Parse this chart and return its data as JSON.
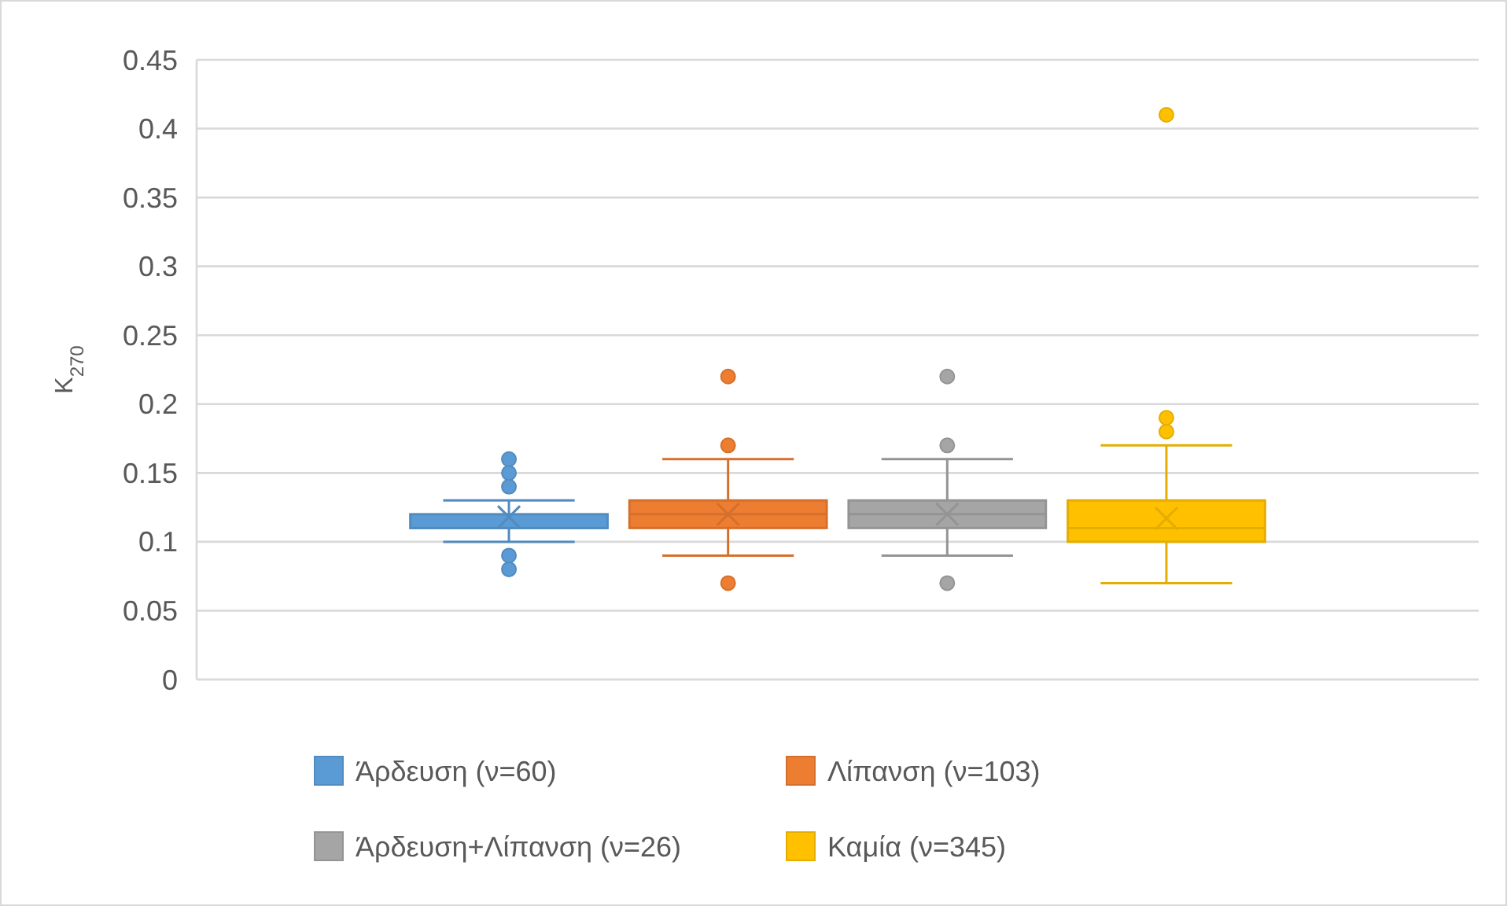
{
  "chart_data": {
    "type": "box",
    "ylabel": "K$_{270}$",
    "categories": [
      null
    ],
    "ylim": [
      0,
      0.45
    ],
    "yticks": [
      0,
      0.05,
      0.1,
      0.15,
      0.2,
      0.25,
      0.3,
      0.35,
      0.4,
      0.45
    ],
    "grid": "y",
    "legend": "bottom",
    "marker": "circle",
    "series": [
      {
        "name": "Άρδευση (ν=60)",
        "color": "#5b9bd5",
        "boxes": [
          {
            "low": 0.1,
            "q1": 0.11,
            "median": 0.11,
            "q3": 0.12,
            "high": 0.13,
            "mean": 0.118,
            "outliers": [
              0.14,
              0.15,
              0.16,
              0.09,
              0.08
            ]
          }
        ]
      },
      {
        "name": "Λίπανση (ν=103)",
        "color": "#ed7d31",
        "boxes": [
          {
            "low": 0.09,
            "q1": 0.11,
            "median": 0.12,
            "q3": 0.13,
            "high": 0.16,
            "mean": 0.12,
            "outliers": [
              0.17,
              0.22,
              0.07
            ]
          }
        ]
      },
      {
        "name": "Άρδευση+Λίπανση (ν=26)",
        "color": "#a5a5a5",
        "boxes": [
          {
            "low": 0.09,
            "q1": 0.11,
            "median": 0.12,
            "q3": 0.13,
            "high": 0.16,
            "mean": 0.12,
            "outliers": [
              0.17,
              0.22,
              0.07
            ]
          }
        ]
      },
      {
        "name": "Καμία (ν=345)",
        "color": "#ffc000",
        "boxes": [
          {
            "low": 0.07,
            "q1": 0.1,
            "median": 0.11,
            "q3": 0.13,
            "high": 0.17,
            "mean": 0.117,
            "outliers": [
              0.18,
              0.19,
              0.41
            ]
          }
        ]
      }
    ]
  }
}
